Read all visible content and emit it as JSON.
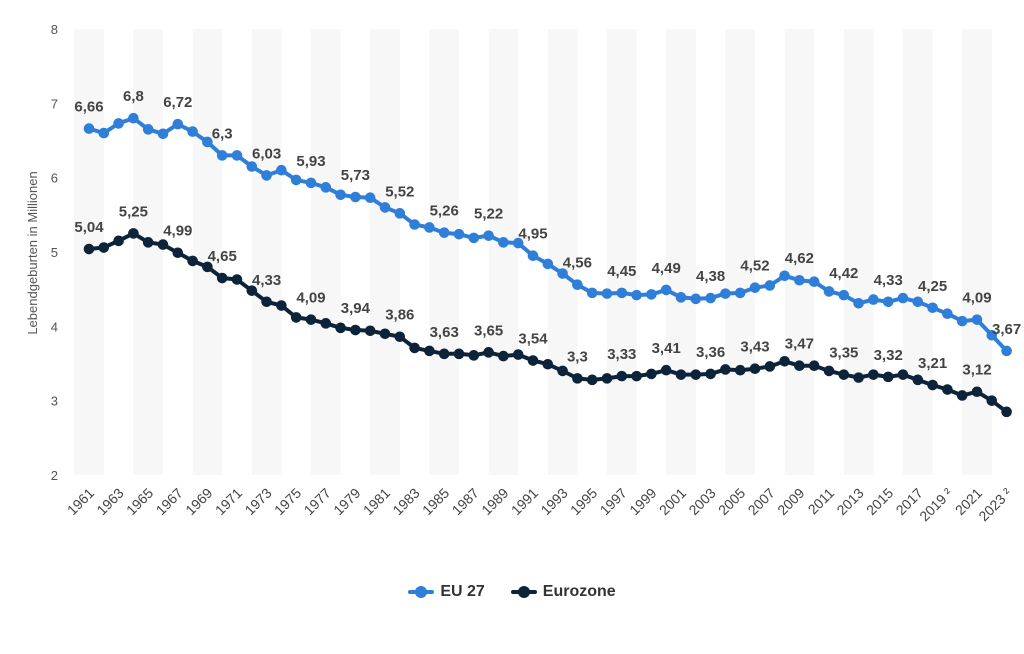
{
  "chart_data": {
    "type": "line",
    "ylabel": "Lebendgeburten in Millionen",
    "ylim": [
      2,
      8
    ],
    "yticks": [
      "2",
      "3",
      "4",
      "5",
      "6",
      "7",
      "8"
    ],
    "grid": "alternating vertical bands",
    "legend_position": "bottom-center",
    "x": [
      "1961",
      "1962",
      "1963",
      "1964",
      "1965",
      "1966",
      "1967",
      "1968",
      "1969",
      "1970",
      "1971",
      "1972",
      "1973",
      "1974",
      "1975",
      "1976",
      "1977",
      "1978",
      "1979",
      "1980",
      "1981",
      "1982",
      "1983",
      "1984",
      "1985",
      "1986",
      "1987",
      "1988",
      "1989",
      "1990",
      "1991",
      "1992",
      "1993",
      "1994",
      "1995",
      "1996",
      "1997",
      "1998",
      "1999",
      "2000",
      "2001",
      "2002",
      "2003",
      "2004",
      "2005",
      "2006",
      "2007",
      "2008",
      "2009",
      "2010",
      "2011",
      "2012",
      "2013",
      "2014",
      "2015",
      "2016",
      "2017",
      "2018",
      "2019 ²",
      "2020",
      "2021",
      "2022",
      "2023 ²"
    ],
    "x_tick_labels": [
      "1961",
      "1963",
      "1965",
      "1967",
      "1969",
      "1971",
      "1973",
      "1975",
      "1977",
      "1979",
      "1981",
      "1983",
      "1985",
      "1987",
      "1989",
      "1991",
      "1993",
      "1995",
      "1997",
      "1999",
      "2001",
      "2003",
      "2005",
      "2007",
      "2009",
      "2011",
      "2013",
      "2015",
      "2017",
      "2019 ²",
      "2021",
      "2023 ²"
    ],
    "series": [
      {
        "name": "EU 27",
        "color": "#2f7ed8",
        "values": [
          6.66,
          6.6,
          6.73,
          6.8,
          6.65,
          6.59,
          6.72,
          6.62,
          6.48,
          6.3,
          6.3,
          6.15,
          6.03,
          6.1,
          5.97,
          5.93,
          5.87,
          5.77,
          5.74,
          5.73,
          5.6,
          5.52,
          5.37,
          5.33,
          5.26,
          5.24,
          5.19,
          5.22,
          5.13,
          5.12,
          4.95,
          4.84,
          4.71,
          4.56,
          4.45,
          4.44,
          4.45,
          4.42,
          4.43,
          4.49,
          4.39,
          4.37,
          4.38,
          4.44,
          4.45,
          4.52,
          4.55,
          4.68,
          4.62,
          4.6,
          4.47,
          4.42,
          4.31,
          4.36,
          4.33,
          4.38,
          4.33,
          4.25,
          4.17,
          4.07,
          4.09,
          3.88,
          3.67
        ],
        "labels": [
          "6,66",
          "6,8",
          "6,72",
          "6,3",
          "6,03",
          "5,93",
          "5,73",
          "5,52",
          "5,26",
          "5,22",
          "4,95",
          "4,56",
          "4,45",
          "4,49",
          "4,38",
          "4,52",
          "4,62",
          "4,42",
          "4,33",
          "4,25",
          "4,09",
          "3,67"
        ]
      },
      {
        "name": "Eurozone",
        "color": "#0d233a",
        "values": [
          5.04,
          5.06,
          5.15,
          5.25,
          5.13,
          5.1,
          4.99,
          4.88,
          4.8,
          4.65,
          4.63,
          4.48,
          4.33,
          4.28,
          4.12,
          4.09,
          4.04,
          3.98,
          3.95,
          3.94,
          3.9,
          3.86,
          3.71,
          3.67,
          3.63,
          3.63,
          3.61,
          3.65,
          3.6,
          3.62,
          3.54,
          3.49,
          3.4,
          3.3,
          3.28,
          3.3,
          3.33,
          3.33,
          3.36,
          3.41,
          3.35,
          3.35,
          3.36,
          3.42,
          3.41,
          3.43,
          3.46,
          3.53,
          3.47,
          3.47,
          3.4,
          3.35,
          3.31,
          3.35,
          3.32,
          3.35,
          3.28,
          3.21,
          3.15,
          3.07,
          3.12,
          3.0,
          2.85
        ],
        "labels": [
          "5,04",
          "5,25",
          "4,99",
          "4,65",
          "4,33",
          "4,09",
          "3,94",
          "3,86",
          "3,63",
          "3,65",
          "3,54",
          "3,3",
          "3,33",
          "3,41",
          "3,36",
          "3,43",
          "3,47",
          "3,35",
          "3,32",
          "3,21",
          "3,12"
        ]
      }
    ]
  }
}
